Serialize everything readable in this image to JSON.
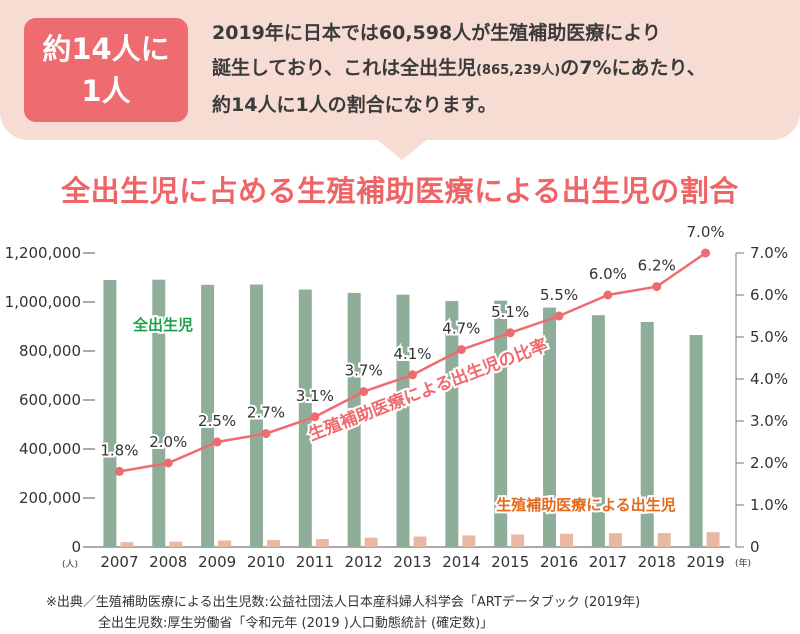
{
  "callout": {
    "badge_line1": "約14人に",
    "badge_line2": "1人",
    "line1": "2019年に日本では60,598人が生殖補助医療により",
    "line2_a": "誕生しており、これは全出生児",
    "line2_small": "(865,239人)",
    "line2_b": "の7%にあたり、",
    "line3": "約14人に1人の割合になります。"
  },
  "source": {
    "line1": "※出典／生殖補助医療による出生児数:公益社団法人日本産科婦人科学会「ARTデータブック (2019年)",
    "line2": "全出生児数:厚生労働省「令和元年 (2019 )人口動態統計 (確定数)」"
  },
  "chart_data": {
    "type": "bar+line",
    "title": "全出生児に占める生殖補助医療による出生児の割合",
    "categories": [
      "2007",
      "2008",
      "2009",
      "2010",
      "2011",
      "2012",
      "2013",
      "2014",
      "2015",
      "2016",
      "2017",
      "2018",
      "2019"
    ],
    "left_axis": {
      "unit_label": "(人)",
      "ylim": [
        0,
        1200000
      ],
      "ticks": [
        "0",
        "200,000",
        "400,000",
        "600,000",
        "800,000",
        "1,000,000",
        "1,200,000"
      ]
    },
    "right_axis": {
      "ylim": [
        0,
        7.0
      ],
      "ticks": [
        "0",
        "1.0%",
        "2.0%",
        "3.0%",
        "4.0%",
        "5.0%",
        "6.0%",
        "7.0%"
      ]
    },
    "x_unit_label": "(年)",
    "series": [
      {
        "name": "全出生児",
        "kind": "bar",
        "axis": "left",
        "color": "#8fae9a",
        "label_color": "#1fa04a",
        "values": [
          1089818,
          1091156,
          1070036,
          1071305,
          1050807,
          1037232,
          1029817,
          1003609,
          1005721,
          977242,
          946146,
          918400,
          865239
        ]
      },
      {
        "name": "生殖補助医療による出生児",
        "kind": "bar",
        "axis": "left",
        "color": "#e8b8a2",
        "label_color": "#e36a1b",
        "values": [
          19595,
          21704,
          26680,
          28945,
          32426,
          37953,
          42554,
          47322,
          51001,
          54110,
          56617,
          56979,
          60598
        ]
      },
      {
        "name": "生殖補助医療による出生児の比率",
        "kind": "line",
        "axis": "right",
        "color": "#ee6b6f",
        "label_color": "#ee6b6f",
        "values": [
          1.8,
          2.0,
          2.5,
          2.7,
          3.1,
          3.7,
          4.1,
          4.7,
          5.1,
          5.5,
          6.0,
          6.2,
          7.0
        ],
        "labels": [
          "1.8%",
          "2.0%",
          "2.5%",
          "2.7%",
          "3.1%",
          "3.7%",
          "4.1%",
          "4.7%",
          "5.1%",
          "5.5%",
          "6.0%",
          "6.2%",
          "7.0%"
        ]
      }
    ]
  }
}
